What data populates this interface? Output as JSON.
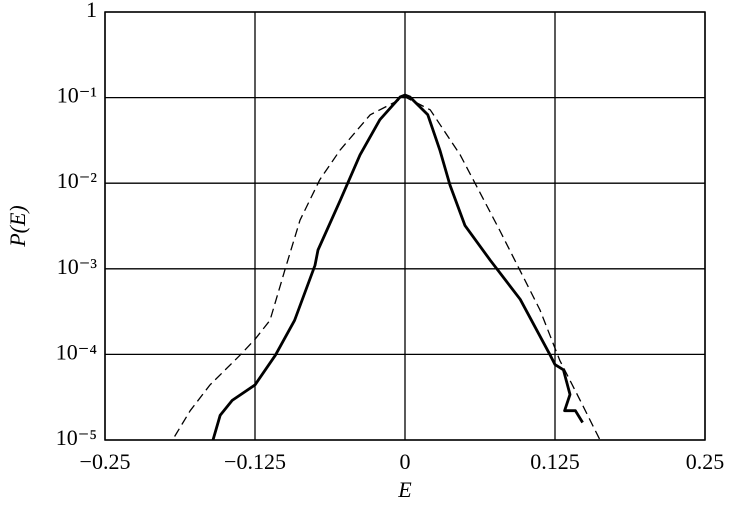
{
  "chart_data": {
    "type": "line",
    "y_label": "P(E)",
    "x_label": "E",
    "log_y": true,
    "grid": true,
    "xlim": [
      -0.25,
      0.25
    ],
    "xticks": [
      {
        "value": -0.25,
        "label": "−0.25"
      },
      {
        "value": -0.125,
        "label": "−0.125"
      },
      0,
      0.125,
      0.25
    ],
    "ylim": [
      1e-05,
      1
    ],
    "yticks": [
      {
        "value": 1e-05,
        "label": "10⁻⁵"
      },
      {
        "value": 0.0001,
        "label": "10⁻⁴"
      },
      {
        "value": 0.001,
        "label": "10⁻³"
      },
      {
        "value": 0.01,
        "label": "10⁻²"
      },
      {
        "value": 0.1,
        "label": "10⁻¹"
      },
      1
    ],
    "series": [
      {
        "color": "#000000",
        "linestyle": "solid",
        "x": [
          -0.16,
          -0.154,
          -0.144,
          -0.125,
          -0.108,
          -0.092,
          -0.075,
          -0.0725,
          -0.054,
          -0.0375,
          -0.021,
          -0.004,
          0,
          0.004,
          0.019,
          0.029,
          0.0375,
          0.05,
          0.071,
          0.096,
          0.121,
          0.125,
          0.132,
          0.1375,
          0.133,
          0.142,
          0.148
        ],
        "values": [
          1e-05,
          1.95e-05,
          2.9e-05,
          4.4e-05,
          9.8e-05,
          0.00025,
          0.0011,
          0.00166,
          0.0063,
          0.0214,
          0.055,
          0.102,
          0.107,
          0.102,
          0.063,
          0.0245,
          0.0095,
          0.0032,
          0.00126,
          0.00044,
          9.8e-05,
          7.6e-05,
          6.6e-05,
          3.4e-05,
          2.2e-05,
          2.2e-05,
          1.6e-05
        ]
      },
      {
        "color": "#000000",
        "linestyle": "dashed",
        "x": [
          -0.192,
          -0.179,
          -0.1625,
          -0.1375,
          -0.125,
          -0.1125,
          -0.1,
          -0.0875,
          -0.071,
          -0.054,
          -0.029,
          0,
          0.021,
          0.046,
          0.079,
          0.1125,
          0.129,
          0.146,
          0.1625
        ],
        "values": [
          1.1e-05,
          2.2e-05,
          4.4e-05,
          9.8e-05,
          0.00015,
          0.00025,
          0.00098,
          0.0037,
          0.011,
          0.0245,
          0.063,
          0.102,
          0.072,
          0.0214,
          0.0028,
          0.00033,
          8.5e-05,
          2.9e-05,
          1e-05
        ]
      }
    ]
  }
}
